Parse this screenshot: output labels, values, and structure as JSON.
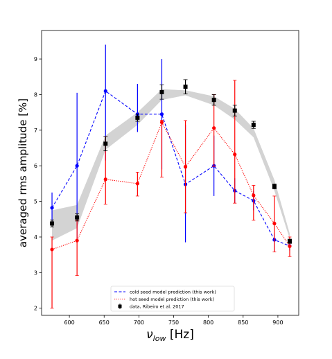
{
  "chart_data": {
    "type": "line",
    "title": "",
    "xlabel": "ν_low [Hz]",
    "xlabel_main": "ν",
    "xlabel_sub": "low",
    "xlabel_unit": " [Hz]",
    "ylabel": "averaged rms amplitude [%]",
    "xlim": [
      560,
      930
    ],
    "ylim": [
      1.8,
      9.8
    ],
    "xticks": [
      600,
      650,
      700,
      750,
      800,
      850,
      900
    ],
    "yticks": [
      2,
      3,
      4,
      5,
      6,
      7,
      8,
      9
    ],
    "grid": false,
    "legend_position": "lower-center",
    "band": {
      "x": [
        575,
        611,
        652,
        698,
        733,
        767,
        808,
        838,
        865,
        895,
        917
      ],
      "lower": [
        3.9,
        4.25,
        6.45,
        7.15,
        7.85,
        7.98,
        7.7,
        7.3,
        6.8,
        5.3,
        3.95
      ],
      "upper": [
        4.75,
        4.9,
        6.85,
        7.5,
        8.15,
        8.12,
        7.95,
        7.6,
        7.05,
        5.6,
        4.1
      ]
    },
    "series": [
      {
        "name": "cold seed model prediction (this work)",
        "color": "#0000ff",
        "style": "dashed",
        "x": [
          575,
          611,
          652,
          698,
          733,
          767,
          808,
          838,
          865,
          895,
          917
        ],
        "y": [
          4.82,
          6.0,
          8.1,
          7.45,
          7.45,
          5.48,
          6.0,
          5.3,
          5.02,
          3.92,
          3.75
        ],
        "err_low": [
          4.35,
          3.95,
          6.15,
          6.95,
          5.9,
          3.85,
          5.15,
          4.95,
          4.75,
          3.6,
          3.62
        ],
        "err_high": [
          5.25,
          8.05,
          9.4,
          8.3,
          9.0,
          7.15,
          6.85,
          5.65,
          5.3,
          4.1,
          3.85
        ]
      },
      {
        "name": "hot seed model prediction (this work)",
        "color": "#ff0000",
        "style": "dotted",
        "x": [
          575,
          611,
          652,
          698,
          733,
          767,
          808,
          838,
          865,
          895,
          917
        ],
        "y": [
          3.65,
          3.9,
          5.62,
          5.5,
          7.22,
          5.97,
          7.06,
          6.32,
          5.17,
          4.38,
          3.74
        ],
        "err_low": [
          2.0,
          2.92,
          4.92,
          5.15,
          5.68,
          4.68,
          5.98,
          4.95,
          4.47,
          3.58,
          3.45
        ],
        "err_high": [
          4.0,
          4.47,
          6.82,
          5.82,
          7.28,
          7.27,
          8.0,
          8.4,
          5.45,
          5.15,
          4.0
        ]
      },
      {
        "name": "data, Ribeiro et al. 2017",
        "color": "#000000",
        "style": "markers",
        "x": [
          575,
          611,
          652,
          698,
          733,
          767,
          808,
          838,
          865,
          895,
          917
        ],
        "y": [
          4.38,
          4.55,
          6.62,
          7.35,
          8.07,
          8.22,
          7.85,
          7.55,
          7.15,
          5.42,
          3.88
        ],
        "err_low": [
          4.28,
          4.45,
          6.42,
          7.25,
          7.87,
          8.02,
          7.7,
          7.4,
          7.05,
          5.35,
          3.82
        ],
        "err_high": [
          4.48,
          4.65,
          6.82,
          7.45,
          8.27,
          8.42,
          8.0,
          7.7,
          7.25,
          5.49,
          3.94
        ]
      }
    ]
  }
}
